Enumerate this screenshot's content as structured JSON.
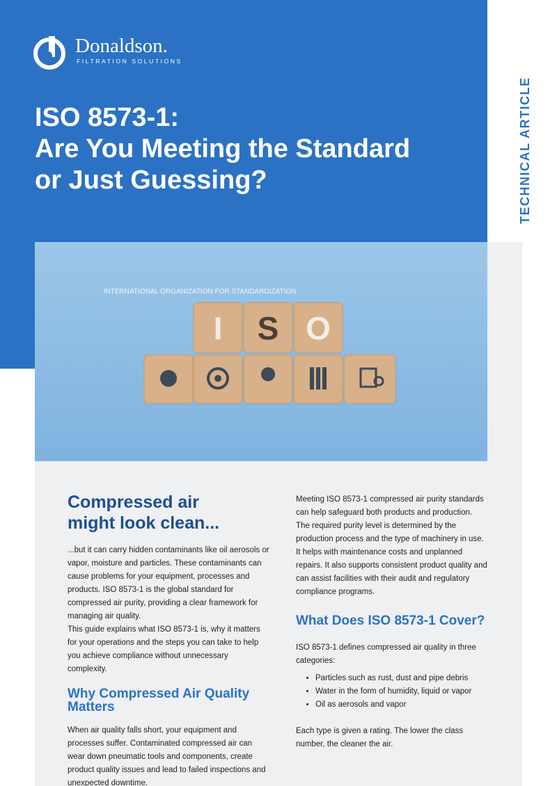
{
  "header": {
    "logo": {
      "name": "Donaldson.",
      "tagline": "FILTRATION SOLUTIONS"
    },
    "title_lines": [
      "ISO 8573-1:",
      "Are You Meeting the Standard",
      "or Just Guessing?"
    ],
    "label": "TECHNICAL ARTICLE"
  },
  "image": {
    "caption": "INTERNATIONAL ORGANIZATION FOR STANDARDIZATION",
    "letters": [
      "I",
      "S",
      "O"
    ]
  },
  "left_column": {
    "heading_lines": [
      "Compressed air",
      "might look clean..."
    ],
    "paragraphs": [
      "...but it can carry hidden contaminants like oil aerosols or vapor, moisture and particles. These contaminants can cause problems for your equipment, processes and products. ISO 8573-1 is the global standard for compressed air purity, providing a clear framework for managing air quality.",
      "This guide explains what ISO 8573-1 is, why it matters for your operations and the steps you can take to help you achieve compliance without unnecessary complexity."
    ],
    "section_heading": "Why Compressed Air Quality Matters",
    "section_paragraph": "When air quality falls short, your equipment and processes suffer. Contaminated compressed air can wear down pneumatic tools and components, create product quality issues and lead to failed inspections and unexpected downtime."
  },
  "right_column": {
    "intro": "Meeting ISO 8573-1 compressed air purity standards can help safeguard both products and production. The required purity level is determined by the production process and the type of machinery in use. It helps with maintenance costs and unplanned repairs. It also supports consistent product quality and can assist facilities with their audit and regulatory compliance programs.",
    "section_heading": "What Does ISO 8573-1 Cover?",
    "lead": "ISO 8573-1 defines compressed air quality in three categories:",
    "bullets": [
      "Particles such as rust, dust and pipe debris",
      "Water in the form of humidity, liquid or vapor",
      "Oil as aerosols and vapor"
    ],
    "closing": "Each type is given a rating. The lower the class number, the cleaner the air."
  }
}
